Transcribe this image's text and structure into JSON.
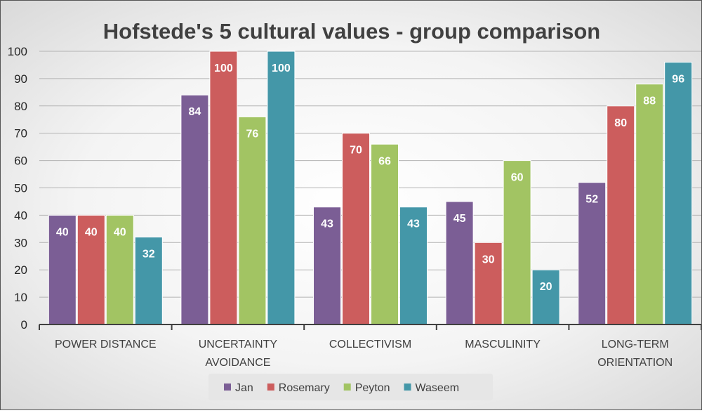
{
  "chart_data": {
    "type": "bar",
    "title": "Hofstede's 5 cultural values - group comparison",
    "categories": [
      "POWER DISTANCE",
      "UNCERTAINTY AVOIDANCE",
      "COLLECTIVISM",
      "MASCULINITY",
      "LONG-TERM ORIENTATION"
    ],
    "category_lines": [
      [
        "POWER DISTANCE"
      ],
      [
        "UNCERTAINTY",
        "AVOIDANCE"
      ],
      [
        "COLLECTIVISM"
      ],
      [
        "MASCULINITY"
      ],
      [
        "LONG-TERM",
        "ORIENTATION"
      ]
    ],
    "series": [
      {
        "name": "Jan",
        "color": "#7b5e95",
        "values": [
          40,
          84,
          43,
          45,
          52
        ]
      },
      {
        "name": "Rosemary",
        "color": "#cc5d5d",
        "values": [
          40,
          100,
          70,
          30,
          80
        ]
      },
      {
        "name": "Peyton",
        "color": "#a2c463",
        "values": [
          40,
          76,
          66,
          60,
          88
        ]
      },
      {
        "name": "Waseem",
        "color": "#4497a8",
        "values": [
          32,
          100,
          43,
          20,
          96
        ]
      }
    ],
    "ylim": [
      0,
      100
    ],
    "yticks": [
      0,
      10,
      20,
      30,
      40,
      50,
      60,
      70,
      80,
      90,
      100
    ],
    "grid": true,
    "legend": "bottom",
    "data_labels": true
  }
}
